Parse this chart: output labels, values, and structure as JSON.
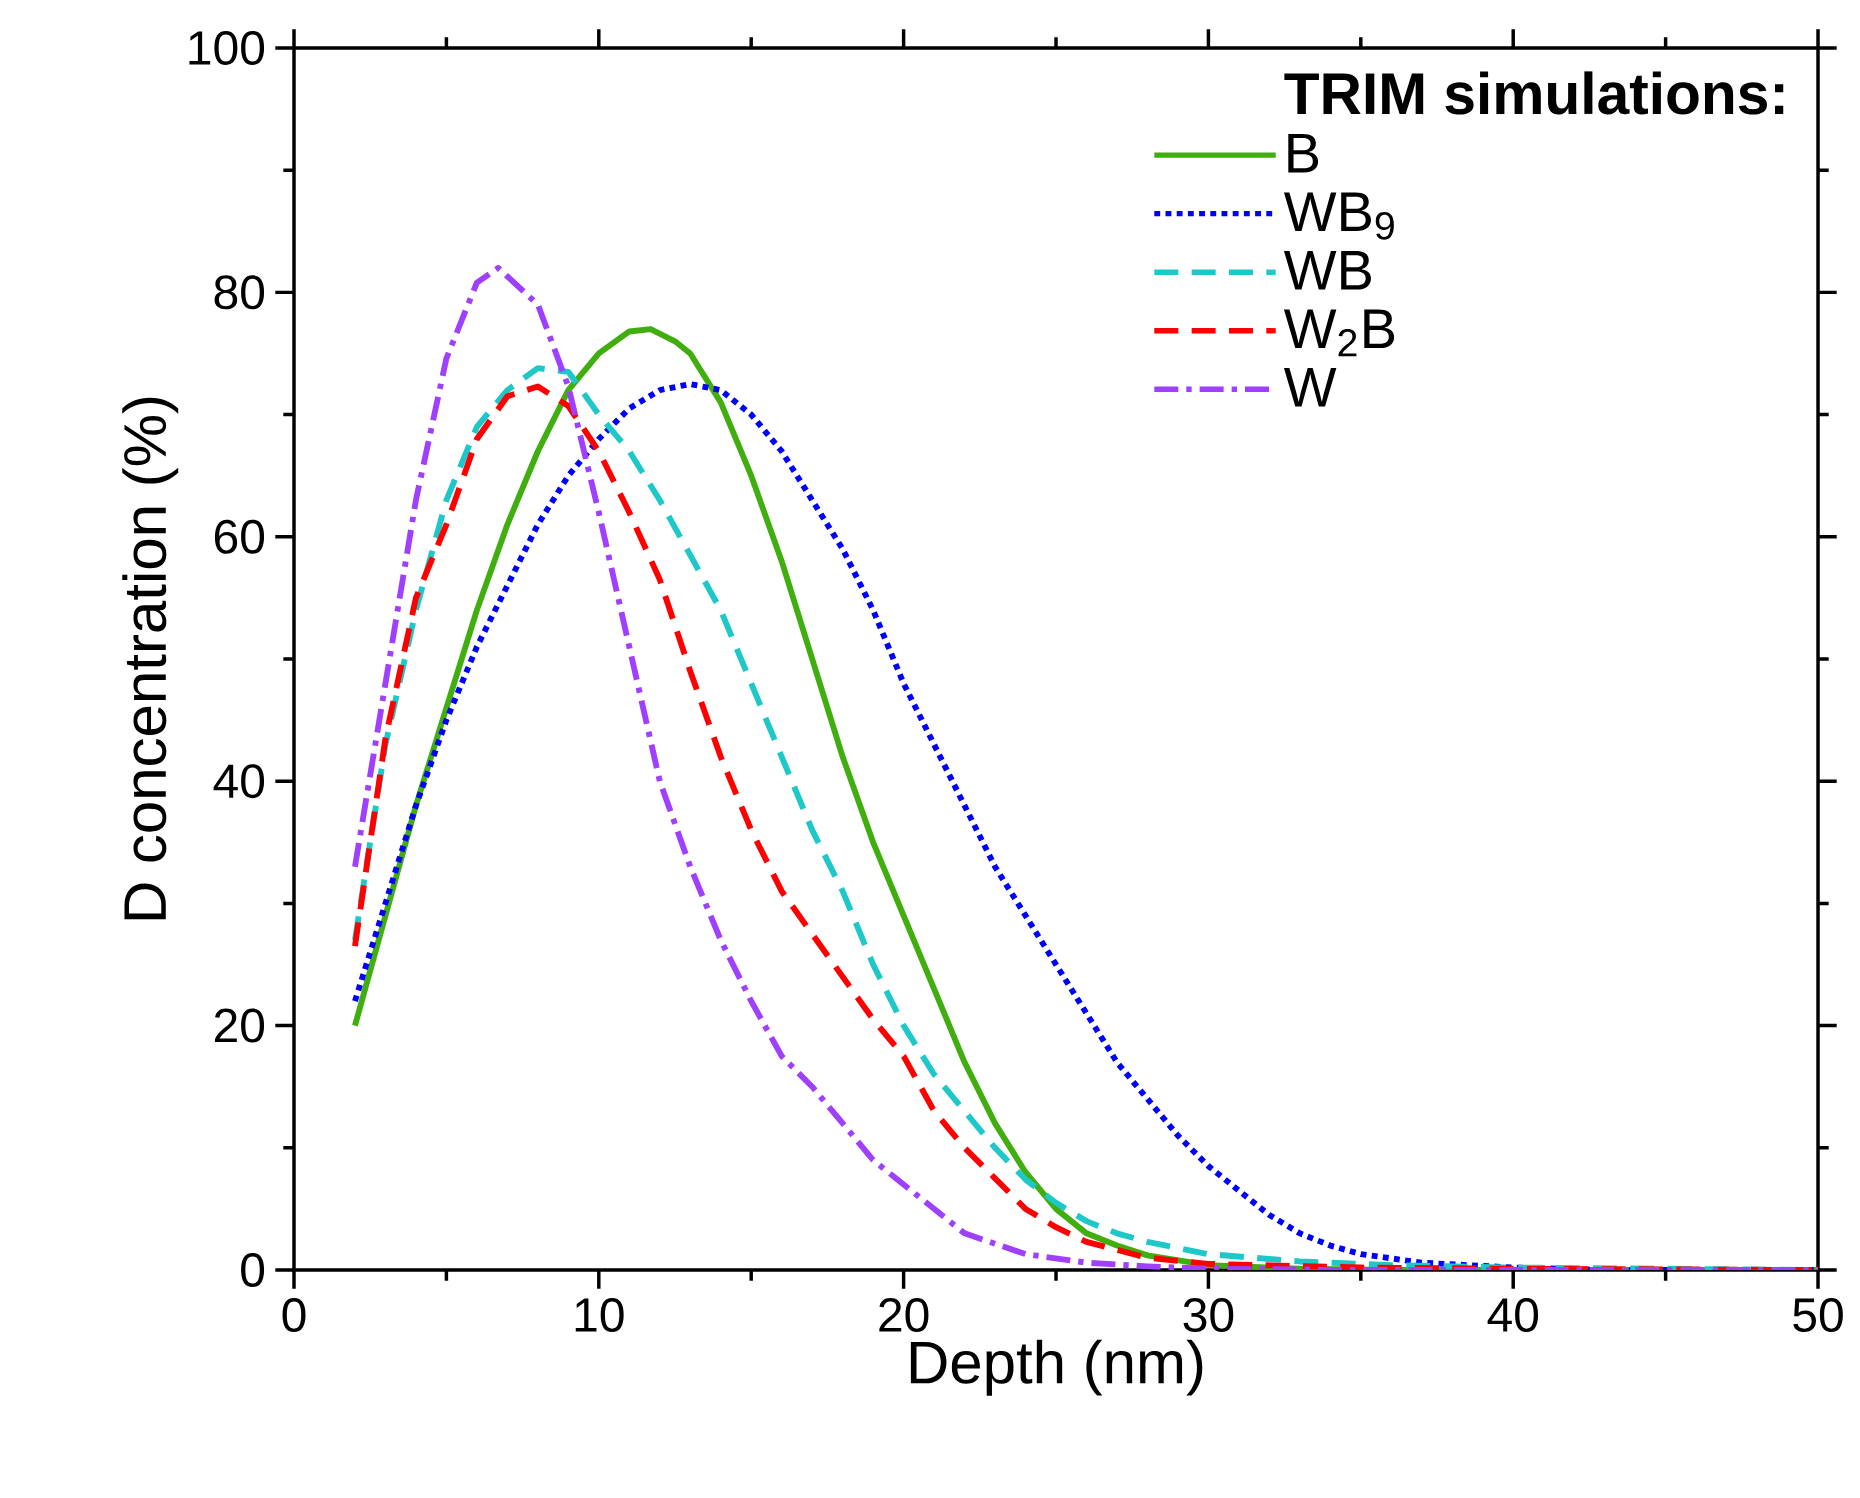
{
  "chart_data": {
    "type": "line",
    "xlabel": "Depth (nm)",
    "ylabel": "D concentration (%)",
    "legend_title": "**TRIM simulations:**",
    "xlim": [
      0,
      50
    ],
    "ylim": [
      0,
      100
    ],
    "xticks": [
      0,
      10,
      20,
      30,
      40,
      50
    ],
    "yticks": [
      0,
      20,
      40,
      60,
      80,
      100
    ],
    "grid": false,
    "legend": "top right",
    "marker": "none",
    "series": [
      {
        "name": "B",
        "color": "#3fae0e",
        "line_style": "solid",
        "x": [
          2,
          3,
          4,
          5,
          6,
          7,
          8,
          9,
          10,
          11,
          11.7,
          12.5,
          13,
          14,
          15,
          16,
          17,
          18,
          19,
          20,
          21,
          22,
          23,
          24,
          25,
          26,
          27,
          28,
          30,
          33,
          36,
          50
        ],
        "values": [
          20,
          29,
          38,
          46,
          54,
          61,
          67,
          72,
          75,
          76.8,
          77,
          76,
          75,
          71,
          65,
          58,
          50,
          42,
          35,
          29,
          23,
          17,
          12,
          8,
          5,
          3,
          2,
          1.2,
          0.4,
          0.1,
          0,
          0
        ]
      },
      {
        "name": "WB$_{9}$",
        "color": "#0000ff",
        "line_style": "dotted",
        "x": [
          2,
          3,
          4,
          5,
          6,
          7,
          8,
          9,
          10,
          11,
          12,
          13,
          14,
          15,
          16,
          17,
          18,
          19,
          20,
          21,
          22,
          23,
          24,
          25,
          26,
          27,
          28,
          29,
          30,
          31,
          32,
          33,
          34,
          35,
          37,
          40,
          43,
          50
        ],
        "values": [
          22,
          30,
          38,
          45,
          51,
          56,
          61,
          65,
          68,
          70.5,
          72,
          72.5,
          72,
          70,
          67,
          63,
          59,
          54,
          48,
          43,
          38,
          33,
          29,
          25,
          21,
          17,
          14,
          11,
          8.5,
          6.5,
          4.5,
          3,
          2,
          1.3,
          0.6,
          0.2,
          0,
          0
        ]
      },
      {
        "name": "WB",
        "color": "#1ec8c8",
        "line_style": "dashed",
        "x": [
          2,
          3,
          4,
          5,
          6,
          7,
          8,
          9,
          10,
          11,
          12,
          13,
          14,
          15,
          16,
          17,
          18,
          19,
          20,
          21,
          22,
          23,
          24,
          25,
          26,
          27,
          28,
          30,
          33,
          36,
          40,
          45,
          50
        ],
        "values": [
          27,
          43,
          54,
          63,
          69,
          72,
          73.8,
          73.5,
          70,
          67,
          63,
          58.5,
          54,
          48,
          42,
          36,
          31,
          25,
          20,
          16,
          13,
          10,
          7.4,
          5.5,
          4,
          3,
          2.3,
          1.3,
          0.7,
          0.4,
          0.2,
          0.1,
          0
        ]
      },
      {
        "name": "W$_{2}$B",
        "color": "#ff0000",
        "line_style": "dashed",
        "x": [
          2,
          3,
          4,
          5,
          6,
          7,
          8,
          9,
          10,
          11,
          12,
          13,
          14,
          15,
          16,
          17,
          18,
          19,
          20,
          21,
          22,
          23,
          24,
          25,
          26,
          28,
          30,
          35,
          40,
          50
        ],
        "values": [
          26.5,
          43.5,
          55,
          61,
          68,
          71.5,
          72.3,
          70.7,
          67,
          62,
          56.5,
          49,
          42,
          36,
          31,
          27.5,
          24,
          20.5,
          17.5,
          13,
          10,
          7.5,
          5,
          3.5,
          2.3,
          1,
          0.5,
          0.2,
          0.1,
          0
        ]
      },
      {
        "name": "W",
        "color": "#a040ff",
        "line_style": "dashdot",
        "x": [
          2,
          3,
          4,
          5,
          6,
          6.7,
          8,
          9,
          10,
          11,
          12,
          13,
          14,
          15,
          16,
          17,
          18,
          19,
          20,
          22,
          24,
          26,
          28,
          30,
          35,
          50
        ],
        "values": [
          33,
          48,
          63,
          74.6,
          80.8,
          82,
          79,
          72.3,
          62,
          51,
          40,
          33,
          27,
          22,
          17.5,
          15,
          12,
          9,
          7,
          3,
          1.3,
          0.6,
          0.3,
          0.1,
          0,
          0
        ]
      }
    ]
  }
}
